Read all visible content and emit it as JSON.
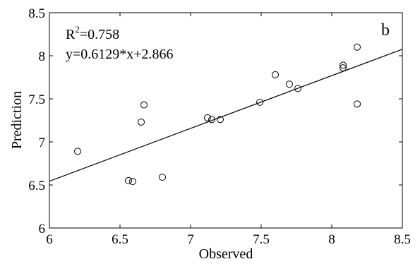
{
  "chart_data": {
    "type": "scatter",
    "xlabel": "Observed",
    "ylabel": "Prediction",
    "xlim": [
      6,
      8.5
    ],
    "ylim": [
      6,
      8.5
    ],
    "x_ticks": [
      "6",
      "6.5",
      "7",
      "7.5",
      "8",
      "8.5"
    ],
    "y_ticks": [
      "6",
      "6.5",
      "7",
      "7.5",
      "8",
      "8.5"
    ],
    "grid": false,
    "points": [
      {
        "x": 6.2,
        "y": 6.89
      },
      {
        "x": 6.56,
        "y": 6.55
      },
      {
        "x": 6.59,
        "y": 6.54
      },
      {
        "x": 6.65,
        "y": 7.23
      },
      {
        "x": 6.67,
        "y": 7.43
      },
      {
        "x": 6.8,
        "y": 6.59
      },
      {
        "x": 7.12,
        "y": 7.28
      },
      {
        "x": 7.15,
        "y": 7.26
      },
      {
        "x": 7.21,
        "y": 7.26
      },
      {
        "x": 7.49,
        "y": 7.46
      },
      {
        "x": 7.6,
        "y": 7.78
      },
      {
        "x": 7.7,
        "y": 7.67
      },
      {
        "x": 7.76,
        "y": 7.62
      },
      {
        "x": 8.08,
        "y": 7.86
      },
      {
        "x": 8.08,
        "y": 7.89
      },
      {
        "x": 8.18,
        "y": 8.1
      },
      {
        "x": 8.18,
        "y": 7.44
      }
    ],
    "fit_line": {
      "slope": 0.6129,
      "intercept": 2.866
    },
    "annotations": {
      "r2_prefix": "R",
      "r2_sup": "2",
      "r2_value": "=0.758",
      "equation": "y=0.6129*x+2.866",
      "panel_label": "b"
    },
    "marker": "open-circle",
    "colors": {
      "marker": "#000000",
      "line": "#000000",
      "axes": "#000000"
    }
  }
}
